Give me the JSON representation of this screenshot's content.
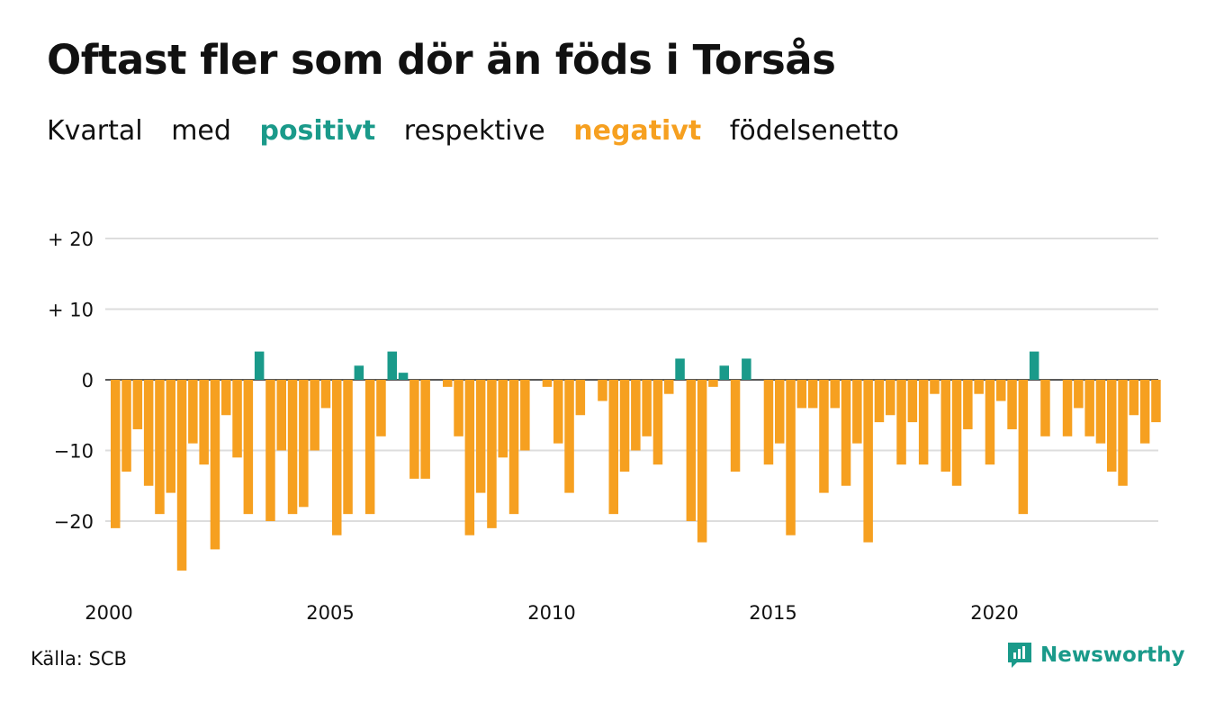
{
  "title": "Oftast fler som dör än föds i Torsås",
  "subtitle": {
    "w1": "Kvartal",
    "w2": "med",
    "positive": "positivt",
    "w3": "respektive",
    "negative": "negativt",
    "w4": "födelsenetto"
  },
  "colors": {
    "positive": "#1a9a8a",
    "negative": "#f6a020",
    "grid": "#dddddd"
  },
  "source": "Källa: SCB",
  "brand": {
    "name": "Newsworthy",
    "icon": "newsworthy-logo-icon"
  },
  "chart_data": {
    "type": "bar",
    "x_start_year": 2000,
    "periods_per_year": 4,
    "values": [
      -21,
      -13,
      -7,
      -15,
      -19,
      -16,
      -27,
      -9,
      -12,
      -24,
      -5,
      -11,
      -19,
      4,
      -20,
      -10,
      -19,
      -18,
      -10,
      -4,
      -22,
      -19,
      2,
      -19,
      -8,
      4,
      1,
      -14,
      -14,
      0,
      -1,
      -8,
      -22,
      -16,
      -21,
      -11,
      -19,
      -10,
      0,
      -1,
      -9,
      -16,
      -5,
      0,
      -3,
      -19,
      -13,
      -10,
      -8,
      -12,
      -2,
      3,
      -20,
      -23,
      -1,
      2,
      -13,
      3,
      0,
      -12,
      -9,
      -22,
      -4,
      -4,
      -16,
      -4,
      -15,
      -9,
      -23,
      -6,
      -5,
      -12,
      -6,
      -12,
      -2,
      -13,
      -15,
      -7,
      -2,
      -12,
      -3,
      -7,
      -19,
      4,
      -8,
      0,
      -8,
      -4,
      -8,
      -9,
      -13,
      -15,
      -5,
      -9,
      -6
    ],
    "y_ticks": [
      20,
      10,
      0,
      -10,
      -20
    ],
    "y_tick_labels": [
      "+ 20",
      "+ 10",
      "0",
      "−10",
      "−20"
    ],
    "x_ticks": [
      2000,
      2005,
      2010,
      2015,
      2020
    ],
    "x_tick_labels": [
      "2000",
      "2005",
      "2010",
      "2015",
      "2020"
    ],
    "ylim": [
      -29,
      21
    ],
    "grid": true
  }
}
